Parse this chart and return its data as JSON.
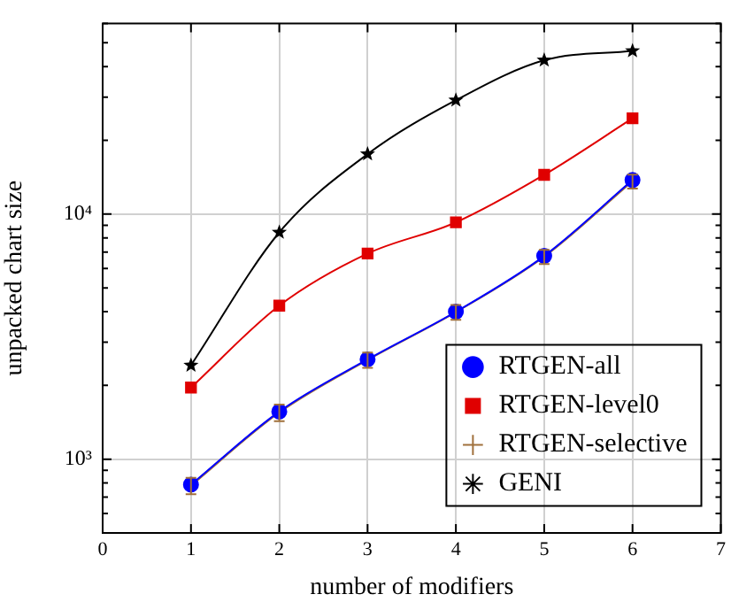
{
  "chart_data": {
    "type": "line",
    "xlabel": "number of modifiers",
    "ylabel": "unpacked chart size",
    "xlim": [
      0,
      7
    ],
    "xticks": [
      0,
      1,
      2,
      3,
      4,
      5,
      6,
      7
    ],
    "ylim": [
      500,
      60000
    ],
    "log": "y",
    "yticks": [
      {
        "value": 500,
        "label": null
      },
      {
        "value": 600,
        "label": null
      },
      {
        "value": 700,
        "label": null
      },
      {
        "value": 800,
        "label": null
      },
      {
        "value": 900,
        "label": null
      },
      {
        "value": 1000,
        "label": "10³"
      },
      {
        "value": 2000,
        "label": null
      },
      {
        "value": 3000,
        "label": null
      },
      {
        "value": 4000,
        "label": null
      },
      {
        "value": 5000,
        "label": null
      },
      {
        "value": 6000,
        "label": null
      },
      {
        "value": 7000,
        "label": null
      },
      {
        "value": 8000,
        "label": null
      },
      {
        "value": 9000,
        "label": null
      },
      {
        "value": 10000,
        "label": "10⁴"
      },
      {
        "value": 20000,
        "label": null
      },
      {
        "value": 30000,
        "label": null
      },
      {
        "value": 40000,
        "label": null
      },
      {
        "value": 50000,
        "label": null
      },
      {
        "value": 60000,
        "label": null
      }
    ],
    "grid": true,
    "legend": "bottom right",
    "line_style": "solid",
    "x": [
      1,
      2,
      3,
      4,
      5,
      6
    ],
    "series": [
      {
        "name": "RTGEN-all",
        "color": "#0000ff",
        "marker": "circle",
        "values": [
          787,
          1564,
          2553,
          3996,
          6750,
          13770
        ]
      },
      {
        "name": "RTGEN-level0",
        "color": "#e00000",
        "marker": "square",
        "values": [
          1960,
          4230,
          6900,
          9250,
          14460,
          24580
        ]
      },
      {
        "name": "RTGEN-selective",
        "color": "#a0703c",
        "marker": "cross",
        "values": [
          780,
          1550,
          2540,
          3980,
          6700,
          13600
        ],
        "errors": [
          60,
          120,
          180,
          280,
          450,
          900
        ]
      },
      {
        "name": "GENI",
        "color": "#000000",
        "marker": "star",
        "values": [
          2415,
          8420,
          17570,
          29150,
          42460,
          46350
        ]
      }
    ]
  }
}
